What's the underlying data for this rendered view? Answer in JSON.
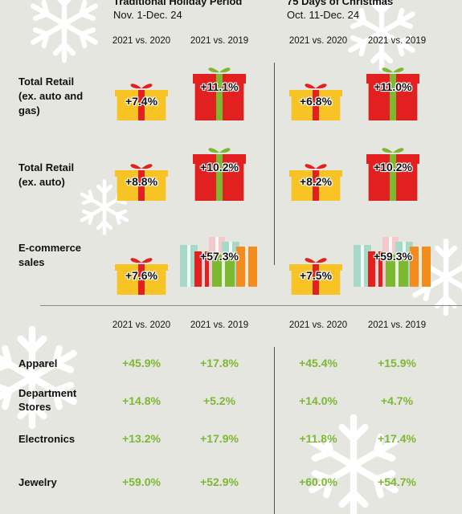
{
  "periods": [
    {
      "title": "Traditional Holiday Period",
      "range": "Nov. 1-Dec. 24"
    },
    {
      "title": "75 Days of Christmas",
      "range": "Oct. 11-Dec. 24"
    }
  ],
  "compare_labels": [
    "2021 vs. 2020",
    "2021 vs. 2019"
  ],
  "colors": {
    "green": "#7cb832",
    "red": "#e2201f",
    "yellow": "#f7c325"
  },
  "chart_data": [
    {
      "type": "table",
      "columns": [
        "Traditional Holiday Period 2021 vs. 2020",
        "Traditional Holiday Period 2021 vs. 2019",
        "75 Days of Christmas 2021 vs. 2020",
        "75 Days of Christmas 2021 vs. 2019"
      ],
      "rows": [
        {
          "label": "Total Retail (ex. auto and gas)",
          "values": [
            "+7.4%",
            "+11.1%",
            "+6.8%",
            "+11.0%"
          ]
        },
        {
          "label": "Total Retail (ex. auto)",
          "values": [
            "+8.8%",
            "+10.2%",
            "+8.2%",
            "+10.2%"
          ]
        },
        {
          "label": "E-commerce sales",
          "values": [
            "+7.6%",
            "+57.3%",
            "+7.5%",
            "+59.3%"
          ]
        }
      ]
    },
    {
      "type": "table",
      "columns": [
        "Traditional Holiday Period 2021 vs. 2020",
        "Traditional Holiday Period 2021 vs. 2019",
        "75 Days of Christmas 2021 vs. 2020",
        "75 Days of Christmas 2021 vs. 2019"
      ],
      "rows": [
        {
          "label": "Apparel",
          "values": [
            "+45.9%",
            "+17.8%",
            "+45.4%",
            "+15.9%"
          ]
        },
        {
          "label": "Department Stores",
          "values": [
            "+14.8%",
            "+5.2%",
            "+14.0%",
            "+4.7%"
          ]
        },
        {
          "label": "Electronics",
          "values": [
            "+13.2%",
            "+17.9%",
            "+11.8%",
            "+17.4%"
          ]
        },
        {
          "label": "Jewelry",
          "values": [
            "+59.0%",
            "+52.9%",
            "+60.0%",
            "+54.7%"
          ]
        }
      ]
    }
  ],
  "labels": {
    "retail": [
      "Total Retail\n(ex. auto and\ngas)",
      "Total Retail\n(ex. auto)",
      "E-commerce\nsales"
    ],
    "categories": [
      "Apparel",
      "Department\nStores",
      "Electronics",
      "Jewelry"
    ]
  }
}
